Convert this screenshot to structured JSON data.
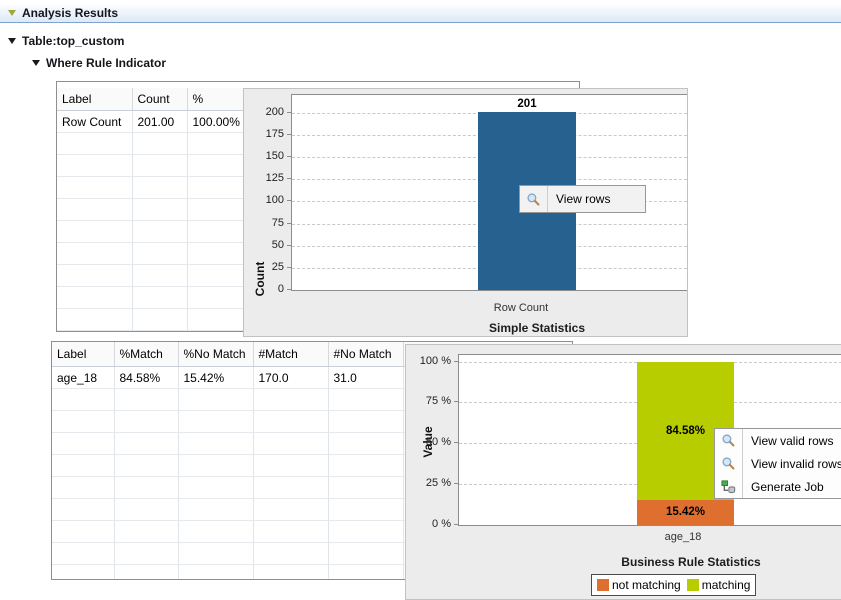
{
  "header": {
    "title": "Analysis Results"
  },
  "tree": {
    "table_node": "Table:top_custom",
    "indicator_node": "Where Rule Indicator"
  },
  "section1": {
    "table": {
      "columns": [
        "Label",
        "Count",
        "%"
      ],
      "rows": [
        [
          "Row Count",
          "201.00",
          "100.00%"
        ]
      ]
    },
    "menu": {
      "items": [
        {
          "icon": "magnifier-icon",
          "label": "View rows"
        }
      ]
    }
  },
  "section2": {
    "table": {
      "columns": [
        "Label",
        "%Match",
        "%No Match",
        "#Match",
        "#No Match"
      ],
      "rows": [
        [
          "age_18",
          "84.58%",
          "15.42%",
          "170.0",
          "31.0"
        ]
      ]
    },
    "menu": {
      "items": [
        {
          "icon": "magnifier-icon",
          "label": "View valid rows"
        },
        {
          "icon": "magnifier-icon",
          "label": "View invalid rows"
        },
        {
          "icon": "generate-job-icon",
          "label": "Generate Job"
        }
      ]
    }
  },
  "chart_data": [
    {
      "type": "bar",
      "title": "Simple Statistics",
      "categories": [
        "Row Count"
      ],
      "values": [
        201
      ],
      "value_labels": [
        "201"
      ],
      "xlabel": "",
      "ylabel": "Count",
      "ylim": [
        0,
        220
      ],
      "yticks": [
        0,
        25,
        50,
        75,
        100,
        125,
        150,
        175,
        200
      ],
      "ytick_labels": [
        "0",
        "25",
        "50",
        "75",
        "100",
        "125",
        "150",
        "175",
        "200"
      ],
      "grid": true,
      "legend": null,
      "bar_color": "#26618f"
    },
    {
      "type": "stacked-bar",
      "title": "Business Rule Statistics",
      "categories": [
        "age_18"
      ],
      "series": [
        {
          "name": "not matching",
          "color": "#df6f2e",
          "values": [
            15.42
          ],
          "labels": [
            "15.42%"
          ]
        },
        {
          "name": "matching",
          "color": "#b8cd00",
          "values": [
            84.58
          ],
          "labels": [
            "84.58%"
          ]
        }
      ],
      "xlabel": "",
      "ylabel": "Value",
      "ylim": [
        0,
        104
      ],
      "yticks": [
        0,
        25,
        50,
        75,
        100
      ],
      "ytick_labels": [
        "0 %",
        "25 %",
        "50 %",
        "75 %",
        "100 %"
      ],
      "grid": true,
      "legend_position": "bottom"
    }
  ],
  "colors": {
    "bar_blue": "#26618f",
    "matching_green": "#b8cd00",
    "not_matching_orange": "#df6f2e",
    "panel_gray": "#ececec"
  }
}
